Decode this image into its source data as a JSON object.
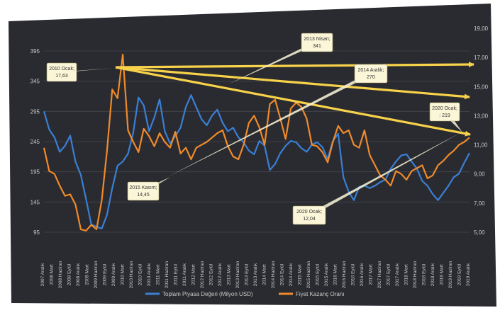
{
  "chart_data": {
    "type": "line",
    "left_ticks": [
      "395",
      "345",
      "295",
      "245",
      "195",
      "145",
      "95"
    ],
    "right_ticks": [
      "19,00",
      "17,00",
      "15,00",
      "13,00",
      "11,00",
      "9,00",
      "7,00",
      "5,00"
    ],
    "x_labels": [
      "2007 Aralık",
      "2008 Mart",
      "2008 Haziran",
      "2008 Eylül",
      "2008 Aralık",
      "2009 Mart",
      "2009 Haziran",
      "2009 Eylül",
      "2009 Aralık",
      "2010 Mart",
      "2010 Haziran",
      "2010 Eylül",
      "2010 Aralık",
      "2011 Mart",
      "2011 Haziran",
      "2011 Eylül",
      "2011 Aralık",
      "2012 Mart",
      "2012 Haziran",
      "2012 Eylül",
      "2012 Aralık",
      "2013 Mart",
      "2013 Haziran",
      "2013 Eylül",
      "2013 Aralık",
      "2014 Mart",
      "2014 Haziran",
      "2014 Eylül",
      "2014 Aralık",
      "2015 Mart",
      "2015 Haziran",
      "2015 Eylül",
      "2015 Aralık",
      "2016 Mart",
      "2016 Haziran",
      "2016 Eylül",
      "2016 Aralık",
      "2017 Mart",
      "2017 Haziran",
      "2017 Eylül",
      "2017 Aralık",
      "2018 Mart",
      "2018 Haziran",
      "2018 Eylül",
      "2018 Aralık",
      "2019 Mart",
      "2019 Haziran",
      "2019 Eylül",
      "2019 Aralık"
    ],
    "series": [
      {
        "name": "Toplam Piyasa Değeri (Milyon USD)",
        "color": "#3a7fd5",
        "axis": "left",
        "values": [
          295,
          265,
          252,
          228,
          238,
          255,
          212,
          190,
          150,
          108,
          104,
          101,
          124,
          168,
          205,
          212,
          225,
          260,
          318,
          305,
          262,
          285,
          315,
          262,
          242,
          254,
          268,
          302,
          322,
          302,
          282,
          272,
          288,
          298,
          276,
          262,
          268,
          252,
          244,
          230,
          224,
          246,
          238,
          198,
          208,
          226,
          238,
          246,
          244,
          234,
          228,
          240,
          244,
          236,
          216,
          246,
          258,
          186,
          162,
          148,
          170,
          172,
          168,
          172,
          178,
          182,
          200,
          212,
          222,
          224,
          212,
          200,
          180,
          172,
          158,
          148,
          160,
          172,
          186,
          192,
          210,
          226
        ]
      },
      {
        "name": "Fiyat Kazanç Oranı",
        "color": "#f08a2a",
        "axis": "right",
        "values": [
          10.8,
          9.2,
          9.0,
          8.2,
          7.5,
          7.6,
          6.9,
          5.2,
          5.1,
          5.5,
          5.2,
          7.2,
          10.6,
          14.8,
          14.2,
          17.2,
          12.0,
          11.2,
          10.5,
          12.1,
          11.6,
          10.9,
          11.8,
          11.2,
          10.8,
          11.9,
          10.4,
          10.8,
          10.0,
          10.8,
          11.0,
          11.2,
          11.5,
          11.8,
          12.0,
          10.9,
          10.2,
          10.0,
          11.0,
          12.5,
          13.0,
          12.2,
          11.0,
          13.8,
          14.1,
          12.8,
          11.4,
          13.5,
          13.9,
          13.6,
          12.8,
          11.0,
          10.9,
          10.5,
          9.8,
          11.2,
          12.3,
          11.8,
          12.0,
          11.0,
          10.8,
          12.0,
          10.3,
          9.6,
          8.9,
          8.6,
          8.2,
          9.2,
          9.0,
          8.6,
          9.2,
          9.4,
          9.6,
          8.7,
          8.9,
          9.6,
          9.9,
          10.3,
          10.6,
          11.0,
          11.2,
          11.5
        ]
      }
    ],
    "annotations": [
      {
        "text_lines": [
          "2010 Ocak;",
          "17,63"
        ]
      },
      {
        "text_lines": [
          "2013 Nisan;",
          "341"
        ]
      },
      {
        "text_lines": [
          "2014 Aralık;",
          "270"
        ]
      },
      {
        "text_lines": [
          "2020 Ocak;",
          ": 219"
        ]
      },
      {
        "text_lines": [
          "2015 Kasım;",
          "14,45"
        ]
      },
      {
        "text_lines": [
          "2020 Ocak;",
          "12,04"
        ]
      }
    ]
  },
  "colors": {
    "background": "#2a2b30",
    "gridline": "#45464c",
    "tick_text": "#c9c9c9",
    "trend_arrow": "#f7d24a",
    "callout_fill": "#fcf6d8"
  }
}
